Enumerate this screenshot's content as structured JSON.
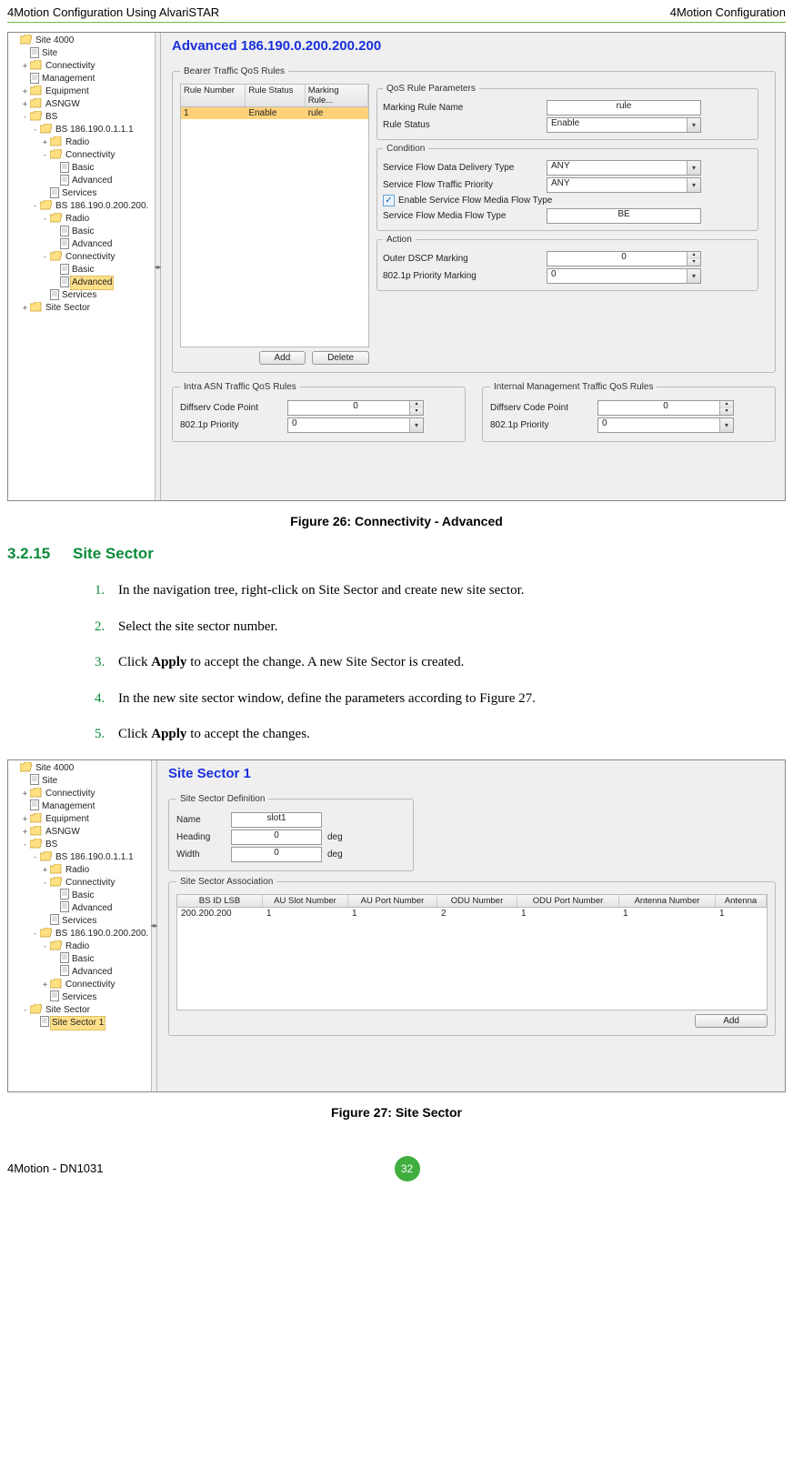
{
  "header": {
    "left": "4Motion Configuration Using AlvariSTAR",
    "right": "4Motion Configuration"
  },
  "shot1": {
    "title": "Advanced 186.190.0.200.200.200",
    "tree": [
      {
        "d": 0,
        "t": "folder-open",
        "e": "",
        "l": "Site 4000"
      },
      {
        "d": 1,
        "t": "page",
        "e": "",
        "l": "Site"
      },
      {
        "d": 1,
        "t": "folder",
        "e": "+",
        "l": "Connectivity"
      },
      {
        "d": 1,
        "t": "page",
        "e": "",
        "l": "Management"
      },
      {
        "d": 1,
        "t": "folder",
        "e": "+",
        "l": "Equipment"
      },
      {
        "d": 1,
        "t": "folder",
        "e": "+",
        "l": "ASNGW"
      },
      {
        "d": 1,
        "t": "folder-open",
        "e": "-",
        "l": "BS"
      },
      {
        "d": 2,
        "t": "folder-open",
        "e": "-",
        "l": "BS 186.190.0.1.1.1"
      },
      {
        "d": 3,
        "t": "folder",
        "e": "+",
        "l": "Radio"
      },
      {
        "d": 3,
        "t": "folder-open",
        "e": "-",
        "l": "Connectivity"
      },
      {
        "d": 4,
        "t": "page",
        "e": "",
        "l": "Basic"
      },
      {
        "d": 4,
        "t": "page",
        "e": "",
        "l": "Advanced"
      },
      {
        "d": 3,
        "t": "page",
        "e": "",
        "l": "Services"
      },
      {
        "d": 2,
        "t": "folder-open",
        "e": "-",
        "l": "BS 186.190.0.200.200."
      },
      {
        "d": 3,
        "t": "folder-open",
        "e": "-",
        "l": "Radio"
      },
      {
        "d": 4,
        "t": "page",
        "e": "",
        "l": "Basic"
      },
      {
        "d": 4,
        "t": "page",
        "e": "",
        "l": "Advanced"
      },
      {
        "d": 3,
        "t": "folder-open",
        "e": "-",
        "l": "Connectivity"
      },
      {
        "d": 4,
        "t": "page",
        "e": "",
        "l": "Basic"
      },
      {
        "d": 4,
        "t": "page",
        "e": "",
        "l": "Advanced",
        "sel": true
      },
      {
        "d": 3,
        "t": "page",
        "e": "",
        "l": "Services"
      },
      {
        "d": 1,
        "t": "folder",
        "e": "+",
        "l": "Site Sector"
      }
    ],
    "rules": {
      "legend": "Bearer Traffic QoS Rules",
      "cols": [
        "Rule Number",
        "Rule Status",
        "Marking Rule..."
      ],
      "row": [
        "1",
        "Enable",
        "rule"
      ],
      "btn_add": "Add",
      "btn_del": "Delete"
    },
    "params_legend": "QoS Rule Parameters",
    "params": {
      "marking_name_lbl": "Marking Rule Name",
      "marking_name": "rule",
      "rule_status_lbl": "Rule Status",
      "rule_status": "Enable"
    },
    "cond_legend": "Condition",
    "cond": {
      "sfd_lbl": "Service Flow Data Delivery Type",
      "sfd": "ANY",
      "sftp_lbl": "Service Flow Traffic Priority",
      "sftp": "ANY",
      "chk_lbl": "Enable Service Flow Media Flow Type",
      "sfmf_lbl": "Service Flow Media Flow Type",
      "sfmf": "BE"
    },
    "act_legend": "Action",
    "act": {
      "dscp_lbl": "Outer DSCP Marking",
      "dscp": "0",
      "p8021_lbl": "802.1p Priority Marking",
      "p8021": "0"
    },
    "intra_legend": "Intra ASN Traffic QoS Rules",
    "internal_legend": "Internal Management Traffic QoS Rules",
    "qos": {
      "dcp_lbl": "Diffserv Code Point",
      "dcp": "0",
      "p8021_lbl": "802.1p Priority",
      "p8021": "0"
    }
  },
  "fig26": "Figure 26: Connectivity - Advanced",
  "section": {
    "num": "3.2.15",
    "title": "Site Sector"
  },
  "steps": [
    "In the navigation tree, right-click on Site Sector and create new site sector.",
    "Select the site sector number.",
    "Click <b>Apply</b> to accept the change. A new Site Sector is created.",
    "In the new site sector window, define the parameters according to Figure 27.",
    "Click <b>Apply</b> to accept the changes."
  ],
  "shot2": {
    "title": "Site Sector 1",
    "tree": [
      {
        "d": 0,
        "t": "folder-open",
        "e": "",
        "l": "Site 4000"
      },
      {
        "d": 1,
        "t": "page",
        "e": "",
        "l": "Site"
      },
      {
        "d": 1,
        "t": "folder",
        "e": "+",
        "l": "Connectivity"
      },
      {
        "d": 1,
        "t": "page",
        "e": "",
        "l": "Management"
      },
      {
        "d": 1,
        "t": "folder",
        "e": "+",
        "l": "Equipment"
      },
      {
        "d": 1,
        "t": "folder",
        "e": "+",
        "l": "ASNGW"
      },
      {
        "d": 1,
        "t": "folder-open",
        "e": "-",
        "l": "BS"
      },
      {
        "d": 2,
        "t": "folder-open",
        "e": "-",
        "l": "BS 186.190.0.1.1.1"
      },
      {
        "d": 3,
        "t": "folder",
        "e": "+",
        "l": "Radio"
      },
      {
        "d": 3,
        "t": "folder-open",
        "e": "-",
        "l": "Connectivity"
      },
      {
        "d": 4,
        "t": "page",
        "e": "",
        "l": "Basic"
      },
      {
        "d": 4,
        "t": "page",
        "e": "",
        "l": "Advanced"
      },
      {
        "d": 3,
        "t": "page",
        "e": "",
        "l": "Services"
      },
      {
        "d": 2,
        "t": "folder-open",
        "e": "-",
        "l": "BS 186.190.0.200.200."
      },
      {
        "d": 3,
        "t": "folder-open",
        "e": "-",
        "l": "Radio"
      },
      {
        "d": 4,
        "t": "page",
        "e": "",
        "l": "Basic"
      },
      {
        "d": 4,
        "t": "page",
        "e": "",
        "l": "Advanced"
      },
      {
        "d": 3,
        "t": "folder",
        "e": "+",
        "l": "Connectivity"
      },
      {
        "d": 3,
        "t": "page",
        "e": "",
        "l": "Services"
      },
      {
        "d": 1,
        "t": "folder-open",
        "e": "-",
        "l": "Site Sector"
      },
      {
        "d": 2,
        "t": "page",
        "e": "",
        "l": "Site Sector 1",
        "sel": true
      }
    ],
    "def_legend": "Site Sector Definition",
    "def": {
      "name_lbl": "Name",
      "name": "slot1",
      "heading_lbl": "Heading",
      "heading": "0",
      "heading_u": "deg",
      "width_lbl": "Width",
      "width": "0",
      "width_u": "deg"
    },
    "assoc_legend": "Site Sector Association",
    "assoc_cols": [
      "BS ID LSB",
      "AU Slot Number",
      "AU Port Number",
      "ODU Number",
      "ODU Port Number",
      "Antenna Number",
      "Antenna"
    ],
    "assoc_row": [
      "200.200.200",
      "1",
      "1",
      "2",
      "1",
      "1",
      "1"
    ],
    "btn_add": "Add"
  },
  "fig27": "Figure 27: Site Sector",
  "footer": {
    "left": "4Motion - DN1031",
    "page": "32"
  }
}
